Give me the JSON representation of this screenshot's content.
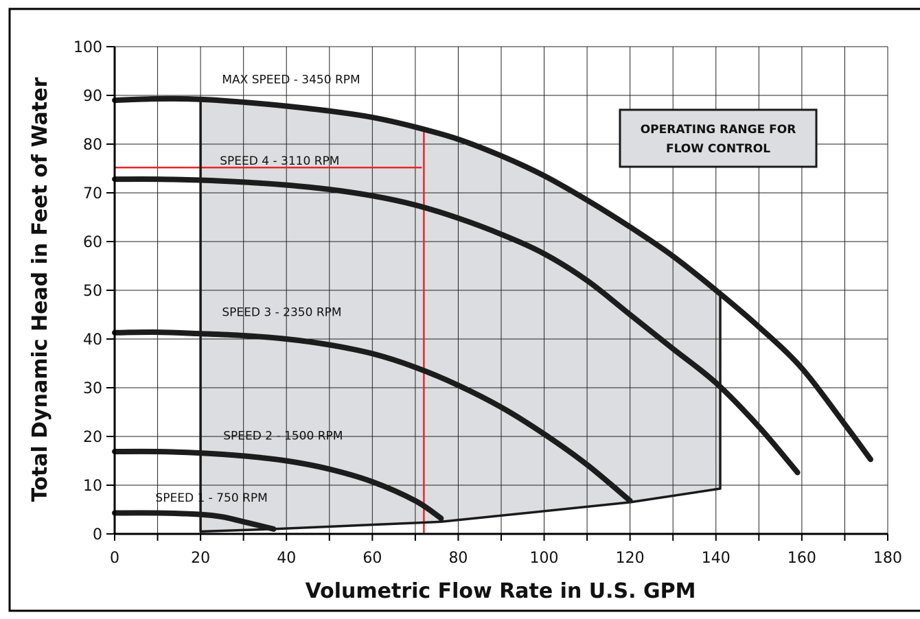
{
  "chart_data": {
    "type": "line",
    "title": "",
    "xlabel": "Volumetric Flow Rate in U.S. GPM",
    "ylabel": "Total Dynamic Head in Feet of Water",
    "xlim": [
      0,
      180
    ],
    "ylim": [
      0,
      100
    ],
    "x_ticks": [
      "0",
      "20",
      "40",
      "60",
      "80",
      "100",
      "120",
      "140",
      "160",
      "180"
    ],
    "y_ticks": [
      "0",
      "10",
      "20",
      "30",
      "40",
      "50",
      "60",
      "70",
      "80",
      "90",
      "100"
    ],
    "grid": true,
    "grid_x_step": 10,
    "grid_y_step": 10,
    "series": [
      {
        "name": "MAX SPEED - 3450 RPM",
        "label_at": [
          25,
          92.5
        ],
        "points": [
          [
            0,
            89
          ],
          [
            10,
            89.3
          ],
          [
            20,
            89.2
          ],
          [
            30,
            88.6
          ],
          [
            40,
            87.8
          ],
          [
            50,
            86.8
          ],
          [
            60,
            85.5
          ],
          [
            70,
            83.5
          ],
          [
            80,
            81
          ],
          [
            90,
            77.6
          ],
          [
            100,
            73.5
          ],
          [
            110,
            68.5
          ],
          [
            120,
            63
          ],
          [
            130,
            57
          ],
          [
            140,
            50
          ],
          [
            150,
            42.5
          ],
          [
            160,
            34
          ],
          [
            170,
            22.5
          ],
          [
            176,
            15.3
          ]
        ]
      },
      {
        "name": "SPEED 4 - 3110 RPM",
        "label_at": [
          24.5,
          75.8
        ],
        "points": [
          [
            0,
            72.8
          ],
          [
            10,
            72.8
          ],
          [
            20,
            72.6
          ],
          [
            30,
            72.2
          ],
          [
            40,
            71.6
          ],
          [
            50,
            70.7
          ],
          [
            60,
            69.4
          ],
          [
            70,
            67.5
          ],
          [
            80,
            64.8
          ],
          [
            90,
            61.5
          ],
          [
            100,
            57.5
          ],
          [
            110,
            52
          ],
          [
            120,
            45
          ],
          [
            130,
            38
          ],
          [
            140,
            31
          ],
          [
            150,
            22
          ],
          [
            159,
            12.6
          ]
        ]
      },
      {
        "name": "SPEED 3 - 2350 RPM",
        "label_at": [
          25,
          44.7
        ],
        "points": [
          [
            0,
            41.3
          ],
          [
            10,
            41.4
          ],
          [
            20,
            41.1
          ],
          [
            30,
            40.7
          ],
          [
            40,
            40
          ],
          [
            50,
            38.8
          ],
          [
            60,
            37
          ],
          [
            70,
            34.2
          ],
          [
            80,
            30.5
          ],
          [
            90,
            26
          ],
          [
            100,
            20.5
          ],
          [
            110,
            14.2
          ],
          [
            120,
            6.8
          ]
        ]
      },
      {
        "name": "SPEED 2 - 1500 RPM",
        "label_at": [
          25.3,
          19.4
        ],
        "points": [
          [
            0,
            16.9
          ],
          [
            10,
            16.9
          ],
          [
            20,
            16.6
          ],
          [
            30,
            16
          ],
          [
            40,
            15
          ],
          [
            50,
            13.3
          ],
          [
            60,
            10.7
          ],
          [
            70,
            6.8
          ],
          [
            76,
            3.2
          ]
        ]
      },
      {
        "name": "SPEED 1 - 750 RPM",
        "label_at": [
          9.5,
          6.6
        ],
        "points": [
          [
            0,
            4.3
          ],
          [
            10,
            4.3
          ],
          [
            20,
            4
          ],
          [
            25,
            3.5
          ],
          [
            30,
            2.5
          ],
          [
            37,
            1
          ]
        ]
      }
    ],
    "operating_range": {
      "label_line1": "OPERATING RANGE FOR",
      "label_line2": "FLOW CONTROL",
      "bottom_boundary": [
        [
          20,
          0.5
        ],
        [
          37,
          1
        ],
        [
          76,
          2.5
        ],
        [
          120,
          6.5
        ],
        [
          141,
          9.3
        ]
      ],
      "left_flow": 20,
      "right_flow": 141,
      "fill_color": "#dcdde0"
    },
    "reference_lines": {
      "color": "#e8262b",
      "vertical_flow": 72,
      "horizontal_head": 75.2
    }
  }
}
